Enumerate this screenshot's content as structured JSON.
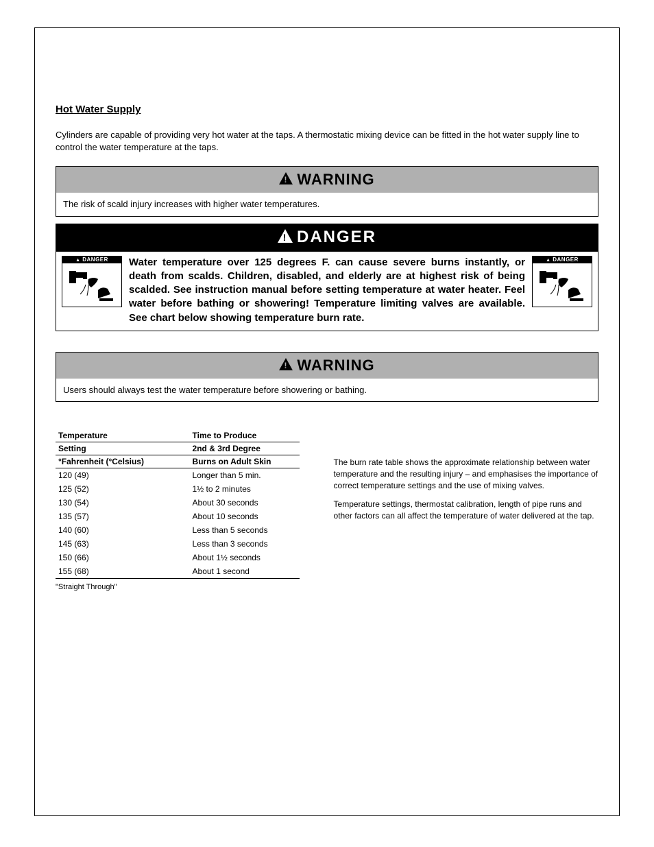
{
  "section": {
    "label": "Hot Water Supply"
  },
  "intro": "Cylinders are capable of providing very hot water at the taps. A thermostatic mixing device can be fitted in the hot water supply line to control the water temperature at the taps.",
  "warning1": {
    "title": "WARNING",
    "body": "The risk of scald injury increases with higher water temperatures."
  },
  "danger": {
    "title": "DANGER",
    "badge": "DANGER",
    "text": "Water temperature over 125 degrees F. can cause severe burns instantly, or death from scalds. Children, disabled, and elderly are at highest risk of being scalded. See instruction manual before setting temperature at water heater. Feel water before bathing or showering! Temperature limiting valves are available. See chart below showing temperature burn rate."
  },
  "warning2": {
    "title": "WARNING",
    "body": "Users should always test the water temperature before showering or bathing."
  },
  "table": {
    "head1_c1": "Temperature",
    "head1_c2": "Time to Produce",
    "head2_c1": "Setting",
    "head2_c2": "2nd & 3rd Degree",
    "head3_c1": "°Fahrenheit (°Celsius)",
    "head3_c2": "Burns on Adult Skin",
    "rows": [
      {
        "c1": "120 (49)",
        "c2": "Longer than 5 min."
      },
      {
        "c1": "125 (52)",
        "c2": "1½ to 2 minutes"
      },
      {
        "c1": "130 (54)",
        "c2": "About 30 seconds"
      },
      {
        "c1": "135 (57)",
        "c2": "About 10 seconds"
      },
      {
        "c1": "140 (60)",
        "c2": "Less than 5 seconds"
      },
      {
        "c1": "145 (63)",
        "c2": "Less than 3 seconds"
      },
      {
        "c1": "150 (66)",
        "c2": "About 1½ seconds"
      },
      {
        "c1": "155 (68)",
        "c2": "About 1 second"
      }
    ],
    "footnote": "\"Straight Through\""
  },
  "rate_note": {
    "p1": "The burn rate table shows the approximate relationship between water temperature and the resulting injury – and emphasises the importance of correct temperature settings and the use of mixing valves.",
    "p2": "Temperature settings, thermostat calibration, length of pipe runs and other factors can all affect the temperature of water delivered at the tap."
  },
  "colors": {
    "warning_bg": "#b0b0b0",
    "danger_bg": "#000000",
    "danger_fg": "#ffffff",
    "page_bg": "#ffffff",
    "text": "#000000"
  }
}
